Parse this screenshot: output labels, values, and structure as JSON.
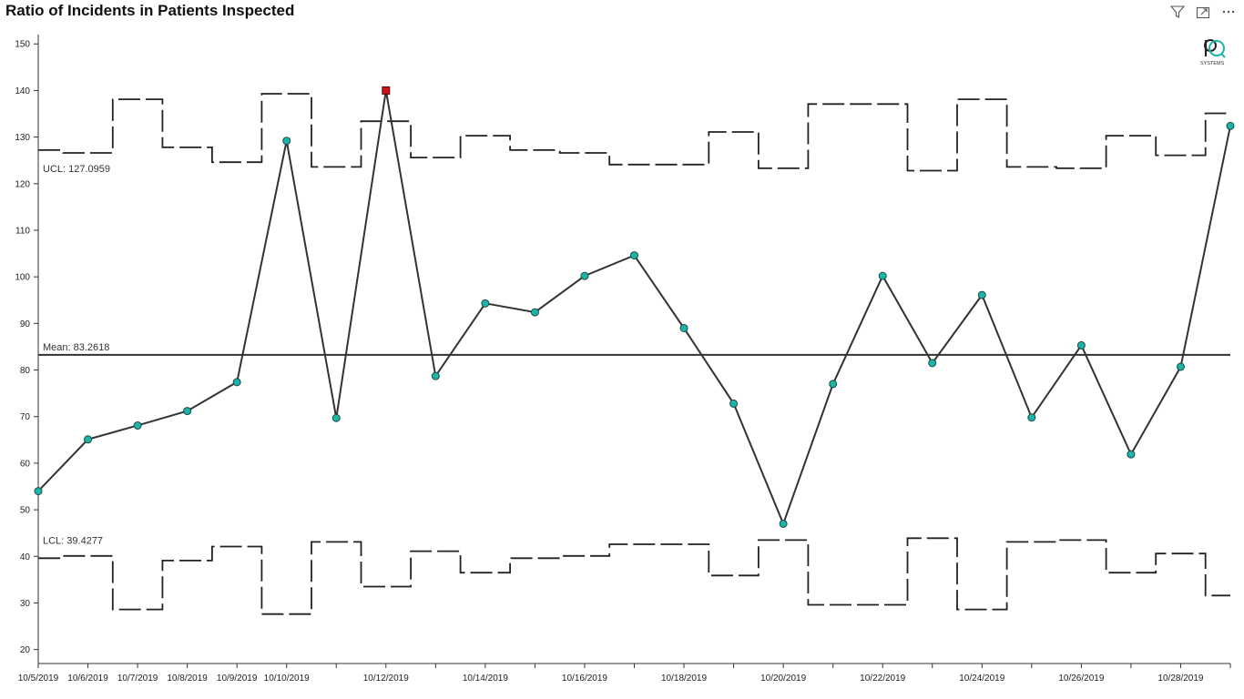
{
  "header": {
    "title": "Ratio of Incidents in Patients Inspected"
  },
  "toolbar": {
    "icons": [
      "filter-icon",
      "focus-mode-icon",
      "more-options-icon"
    ]
  },
  "logo": {
    "text": "SYSTEMS"
  },
  "chart_data": {
    "type": "line",
    "title": "Ratio of Incidents in Patients Inspected",
    "xlabel": "",
    "ylabel": "",
    "ylim": [
      17,
      152
    ],
    "yticks": [
      20,
      30,
      40,
      50,
      60,
      70,
      80,
      90,
      100,
      110,
      120,
      130,
      140,
      150
    ],
    "x": [
      "10/5/2019",
      "10/6/2019",
      "10/7/2019",
      "10/8/2019",
      "10/9/2019",
      "10/10/2019",
      "10/11/2019",
      "10/12/2019",
      "10/13/2019",
      "10/14/2019",
      "10/15/2019",
      "10/16/2019",
      "10/17/2019",
      "10/18/2019",
      "10/19/2019",
      "10/20/2019",
      "10/21/2019",
      "10/22/2019",
      "10/23/2019",
      "10/24/2019",
      "10/25/2019",
      "10/26/2019",
      "10/27/2019",
      "10/28/2019",
      "10/29/2019"
    ],
    "xtick_labels": [
      "10/5/2019",
      "10/6/2019",
      "10/7/2019",
      "10/8/2019",
      "10/9/2019",
      "10/10/2019",
      "",
      "10/12/2019",
      "",
      "10/14/2019",
      "",
      "10/16/2019",
      "",
      "10/18/2019",
      "",
      "10/20/2019",
      "",
      "10/22/2019",
      "",
      "10/24/2019",
      "",
      "10/26/2019",
      "",
      "10/28/2019",
      ""
    ],
    "series": [
      {
        "values": [
          54.0,
          65.1,
          68.1,
          71.2,
          77.4,
          129.2,
          69.7,
          140.0,
          78.7,
          94.3,
          92.4,
          100.2,
          104.6,
          89.0,
          72.8,
          47.0,
          77.0,
          100.2,
          81.5,
          96.1,
          69.8,
          85.3,
          61.9,
          80.7,
          132.4
        ]
      }
    ],
    "ucl": [
      127.2,
      126.6,
      138.1,
      127.8,
      124.6,
      139.3,
      123.6,
      133.4,
      125.6,
      130.3,
      127.2,
      126.6,
      124.1,
      124.1,
      131.1,
      123.3,
      137.1,
      137.1,
      122.8,
      138.1,
      123.6,
      123.3,
      130.3,
      126.1,
      135.1
    ],
    "lcl": [
      39.6,
      40.1,
      28.6,
      39.1,
      42.1,
      27.6,
      43.1,
      33.5,
      41.1,
      36.5,
      39.6,
      40.1,
      42.6,
      42.6,
      35.9,
      43.5,
      29.6,
      29.6,
      43.9,
      28.6,
      43.1,
      43.5,
      36.5,
      40.6,
      31.6
    ],
    "mean": 83.2618,
    "annotations": {
      "ucl": "UCL: 127.0959",
      "mean": "Mean: 83.2618",
      "lcl": "LCL: 39.4277"
    },
    "out_of_control_index": 7,
    "colors": {
      "point": "#1ab5a6",
      "point_stroke": "#1b4a46",
      "outlier": "#d0121b",
      "line": "#333333"
    },
    "legend": "none",
    "grid": false
  }
}
